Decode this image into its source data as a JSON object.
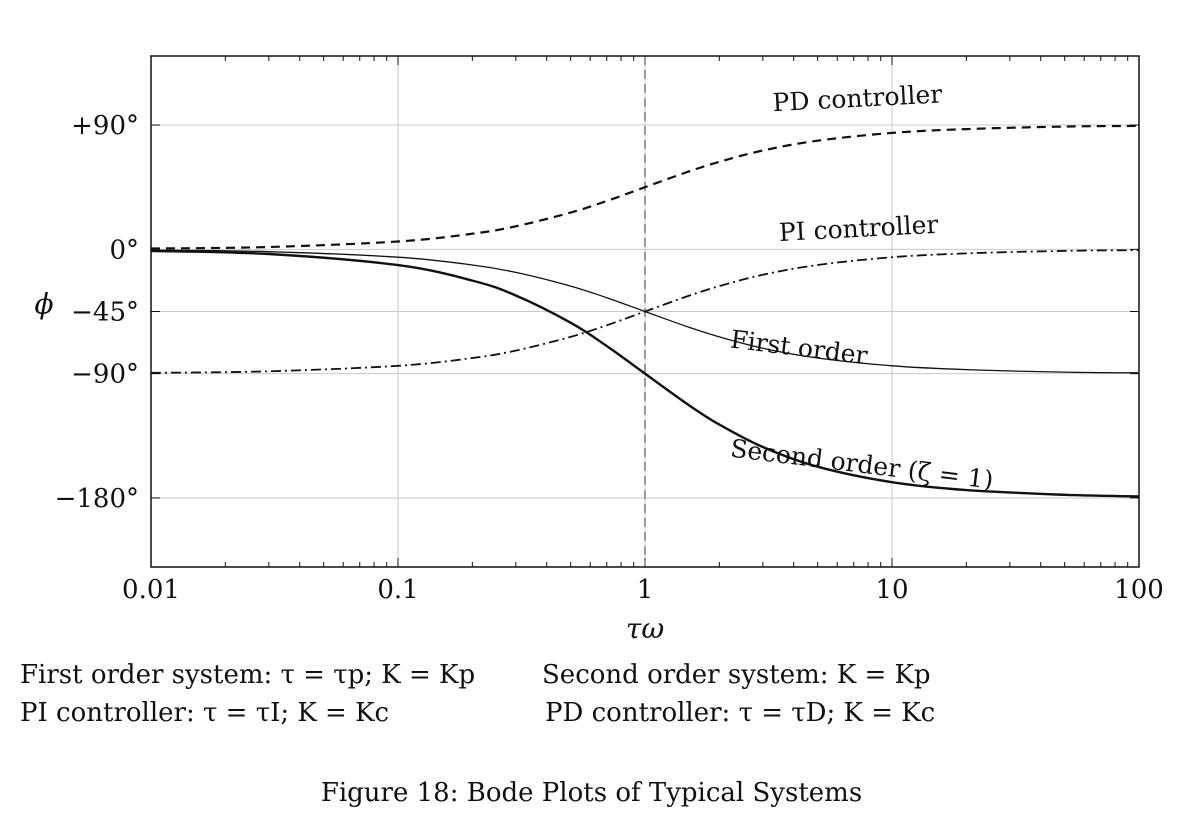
{
  "chart_data": {
    "type": "line",
    "xscale": "log",
    "xlim": [
      0.01,
      100
    ],
    "ylim": [
      -230,
      140
    ],
    "grid": true,
    "xlabel": "τω",
    "ylabel": "ϕ",
    "xticks": [
      {
        "value": 0.01,
        "label": "0.01"
      },
      {
        "value": 0.1,
        "label": "0.1"
      },
      {
        "value": 1,
        "label": "1"
      },
      {
        "value": 10,
        "label": "10"
      },
      {
        "value": 100,
        "label": "100"
      }
    ],
    "yticks": [
      {
        "value": 90,
        "label": "+90°"
      },
      {
        "value": 0,
        "label": "0°"
      },
      {
        "value": -45,
        "label": "−45°"
      },
      {
        "value": -90,
        "label": "−90°"
      },
      {
        "value": -180,
        "label": "−180°"
      }
    ],
    "vline_x": 1,
    "series": [
      {
        "id": "pd",
        "name": "PD controller",
        "style": "dashed",
        "width": 2.2,
        "x": [
          0.01,
          0.03,
          0.1,
          0.2,
          0.3,
          0.5,
          0.7,
          1,
          1.5,
          2,
          3,
          5,
          10,
          20,
          50,
          100
        ],
        "y": [
          0.6,
          1.7,
          5.7,
          11.3,
          16.7,
          26.6,
          35.0,
          45.0,
          56.3,
          63.4,
          71.6,
          78.7,
          84.3,
          87.1,
          88.9,
          89.4
        ],
        "label_at": {
          "x": 3.3,
          "y": 100,
          "angle": -3
        }
      },
      {
        "id": "pi",
        "name": "PI controller",
        "style": "dashdot",
        "width": 1.8,
        "x": [
          0.01,
          0.03,
          0.1,
          0.2,
          0.3,
          0.5,
          0.7,
          1,
          1.5,
          2,
          3,
          5,
          10,
          20,
          50,
          100
        ],
        "y": [
          -89.4,
          -88.3,
          -84.3,
          -78.7,
          -73.3,
          -63.4,
          -55.0,
          -45.0,
          -33.7,
          -26.6,
          -18.4,
          -11.3,
          -5.7,
          -2.9,
          -1.1,
          -0.6
        ],
        "label_at": {
          "x": 3.5,
          "y": 6,
          "angle": -3
        }
      },
      {
        "id": "first",
        "name": "First order",
        "style": "solid",
        "width": 1.3,
        "x": [
          0.01,
          0.03,
          0.1,
          0.2,
          0.3,
          0.5,
          0.7,
          1,
          1.5,
          2,
          3,
          5,
          10,
          20,
          50,
          100
        ],
        "y": [
          -0.6,
          -1.7,
          -5.7,
          -11.3,
          -16.7,
          -26.6,
          -35.0,
          -45.0,
          -56.3,
          -63.4,
          -71.6,
          -78.7,
          -84.3,
          -87.1,
          -88.9,
          -89.4
        ],
        "label_at": {
          "x": 2.2,
          "y": -71,
          "angle": 7
        }
      },
      {
        "id": "second",
        "name": "Second order (ζ = 1)",
        "style": "solid",
        "width": 2.4,
        "x": [
          0.01,
          0.03,
          0.1,
          0.2,
          0.3,
          0.5,
          0.7,
          1,
          1.5,
          2,
          3,
          5,
          10,
          20,
          50,
          100
        ],
        "y": [
          -1.1,
          -3.4,
          -11.4,
          -22.6,
          -33.4,
          -53.1,
          -70.0,
          -90.0,
          -112.6,
          -126.9,
          -143.1,
          -157.4,
          -168.6,
          -174.3,
          -177.7,
          -178.9
        ],
        "label_at": {
          "x": 2.2,
          "y": -150,
          "angle": 7
        }
      }
    ]
  },
  "notes": {
    "row1_left": "First order system: τ = τp; K = Kp",
    "row1_right": "Second order system: K = Kp",
    "row2_left": "PI controller: τ = τI; K = Kc",
    "row2_right": "PD controller: τ = τD; K = Kc"
  },
  "caption": "Figure 18: Bode Plots of Typical Systems"
}
